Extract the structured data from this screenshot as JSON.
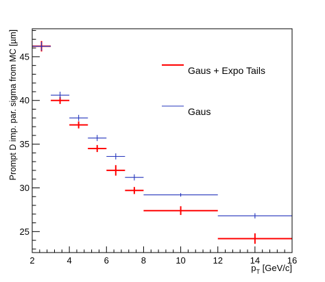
{
  "chart_data": {
    "type": "scatter",
    "title": "",
    "ylabel": "Prompt D imp. par. sigma from MC [µm]",
    "xlabel": {
      "main": "p",
      "sub": "T",
      "rest": " [GeV/c]"
    },
    "xlim": [
      2,
      16
    ],
    "ylim": [
      22.6,
      48.2
    ],
    "xticks": [
      2,
      4,
      6,
      8,
      10,
      12,
      14,
      16
    ],
    "yticks": [
      25,
      30,
      35,
      40,
      45
    ],
    "grid": false,
    "legend_position": "right",
    "series": [
      {
        "name": "Gaus + Expo Tails",
        "color": "#ff0000",
        "points": [
          {
            "xlo": 2,
            "xhi": 3,
            "y": 46.2,
            "err": 0.6
          },
          {
            "xlo": 3,
            "xhi": 4,
            "y": 40.0,
            "err": 0.4
          },
          {
            "xlo": 4,
            "xhi": 5,
            "y": 37.2,
            "err": 0.4
          },
          {
            "xlo": 5,
            "xhi": 6,
            "y": 34.5,
            "err": 0.4
          },
          {
            "xlo": 6,
            "xhi": 7,
            "y": 32.0,
            "err": 0.6
          },
          {
            "xlo": 7,
            "xhi": 8,
            "y": 29.7,
            "err": 0.4
          },
          {
            "xlo": 8,
            "xhi": 12,
            "y": 27.4,
            "err": 0.5
          },
          {
            "xlo": 12,
            "xhi": 16,
            "y": 24.2,
            "err": 0.6
          }
        ]
      },
      {
        "name": "Gaus",
        "color": "#2233bb",
        "points": [
          {
            "xlo": 2,
            "xhi": 3,
            "y": 46.2,
            "err": 0.5
          },
          {
            "xlo": 3,
            "xhi": 4,
            "y": 40.6,
            "err": 0.4
          },
          {
            "xlo": 4,
            "xhi": 5,
            "y": 38.0,
            "err": 0.35
          },
          {
            "xlo": 5,
            "xhi": 6,
            "y": 35.7,
            "err": 0.35
          },
          {
            "xlo": 6,
            "xhi": 7,
            "y": 33.6,
            "err": 0.35
          },
          {
            "xlo": 7,
            "xhi": 8,
            "y": 31.2,
            "err": 0.35
          },
          {
            "xlo": 8,
            "xhi": 12,
            "y": 29.2,
            "err": 0.2
          },
          {
            "xlo": 12,
            "xhi": 16,
            "y": 26.8,
            "err": 0.3
          }
        ]
      }
    ]
  }
}
